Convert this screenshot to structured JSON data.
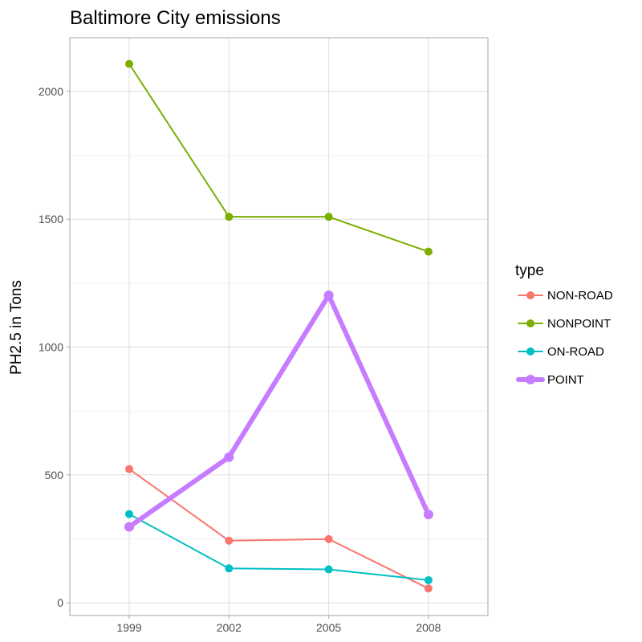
{
  "chart_data": {
    "type": "line",
    "title": "Baltimore City emissions",
    "xlabel": "",
    "ylabel": "PH2.5 in Tons",
    "x": [
      "1999",
      "2002",
      "2005",
      "2008"
    ],
    "ylim": [
      -50,
      2210
    ],
    "y_ticks": [
      0,
      500,
      1000,
      1500,
      2000
    ],
    "grid": true,
    "legend_title": "type",
    "legend_position": "right",
    "series": [
      {
        "name": "NON-ROAD",
        "color": "#F8766D",
        "emphasis": false,
        "values": [
          522.9,
          242.7,
          248.9,
          55.8
        ]
      },
      {
        "name": "NONPOINT",
        "color": "#7CAE00",
        "emphasis": false,
        "values": [
          2107.6,
          1509.5,
          1509.5,
          1373.2
        ]
      },
      {
        "name": "ON-ROAD",
        "color": "#00BFC4",
        "emphasis": false,
        "values": [
          346.8,
          134.3,
          130.4,
          88.3
        ]
      },
      {
        "name": "POINT",
        "color": "#C77CFF",
        "emphasis": true,
        "values": [
          296.8,
          569.3,
          1202.5,
          344.98
        ]
      }
    ]
  }
}
